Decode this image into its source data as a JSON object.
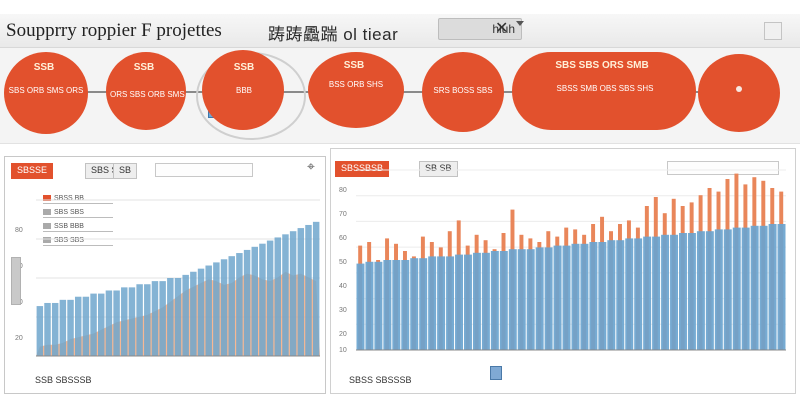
{
  "window": {
    "app_title": "Soupprry roppier F projettes",
    "doc_title": "踌踌飍踹 ol tiear",
    "tab_label": "hiuh",
    "close_glyph": "✕"
  },
  "process": {
    "nodes": [
      {
        "label": "SSB",
        "sub": "SBS  ORB SMS ORS"
      },
      {
        "label": "SSB",
        "sub": "ORS SBS ORB SMS"
      },
      {
        "label": "SSB",
        "sub": "BBB"
      },
      {
        "label": "SSB",
        "sub": "BSS ORB SHS"
      },
      {
        "label": "",
        "sub": "SRS BOSS SBS"
      },
      {
        "label": "SBS SBS ORS SMB",
        "sub": "SBSS SMB OBS SBS SHS"
      },
      {
        "label": "",
        "sub": ""
      }
    ],
    "accent": "#e2512d"
  },
  "left_panel": {
    "tabs": [
      "SBSSE",
      "SBS SBS",
      "SB"
    ],
    "legend": [
      "SBSS BB",
      "SBS SBS",
      "SSB BBB",
      "SBS SBS"
    ],
    "yticks": [
      "80",
      "60",
      "40",
      "20"
    ],
    "footer": "SSB SBSSSB",
    "chart_data": {
      "type": "area",
      "series": [
        {
          "values": [
            16,
            17,
            17,
            18,
            18,
            19,
            19,
            20,
            20,
            21,
            21,
            22,
            22,
            23,
            23,
            24,
            24,
            25,
            25,
            26,
            27,
            28,
            29,
            30,
            31,
            32,
            33,
            34,
            35,
            36,
            37,
            38,
            39,
            40,
            41,
            42,
            43
          ]
        },
        {
          "values": [
            5,
            6,
            6,
            7,
            9,
            10,
            11,
            12,
            14,
            16,
            18,
            19,
            20,
            21,
            22,
            24,
            26,
            29,
            32,
            35,
            37,
            39,
            41,
            40,
            38,
            39,
            42,
            44,
            43,
            41,
            40,
            42,
            45,
            43,
            44,
            42,
            40
          ]
        }
      ],
      "colors": [
        "#6fa6cd",
        "#f4a070"
      ]
    }
  },
  "right_panel": {
    "tabs": [
      "SBSSBSB",
      "SB SB"
    ],
    "yticks": [
      "80",
      "70",
      "60",
      "50",
      "40",
      "30",
      "20",
      "10"
    ],
    "footer": "SBSS SBSSSB",
    "chart_data": {
      "type": "bar",
      "series": [
        {
          "values": [
            48,
            49,
            49,
            50,
            50,
            50,
            51,
            51,
            52,
            52,
            52,
            53,
            53,
            54,
            54,
            55,
            55,
            56,
            56,
            56,
            57,
            57,
            58,
            58,
            59,
            59,
            60,
            60,
            61,
            61,
            62,
            62,
            63,
            63,
            64,
            64,
            65,
            65,
            66,
            66,
            67,
            67,
            68,
            68,
            69,
            69,
            70,
            70
          ]
        },
        {
          "values": [
            58,
            60,
            50,
            62,
            59,
            55,
            52,
            63,
            60,
            57,
            66,
            72,
            58,
            64,
            61,
            56,
            65,
            78,
            64,
            62,
            60,
            66,
            63,
            68,
            67,
            64,
            70,
            74,
            66,
            70,
            72,
            68,
            80,
            85,
            76,
            84,
            80,
            82,
            86,
            90,
            88,
            95,
            98,
            92,
            96,
            94,
            90,
            88
          ]
        }
      ],
      "colors": [
        "#6aa4cf",
        "#e9865a"
      ]
    }
  }
}
